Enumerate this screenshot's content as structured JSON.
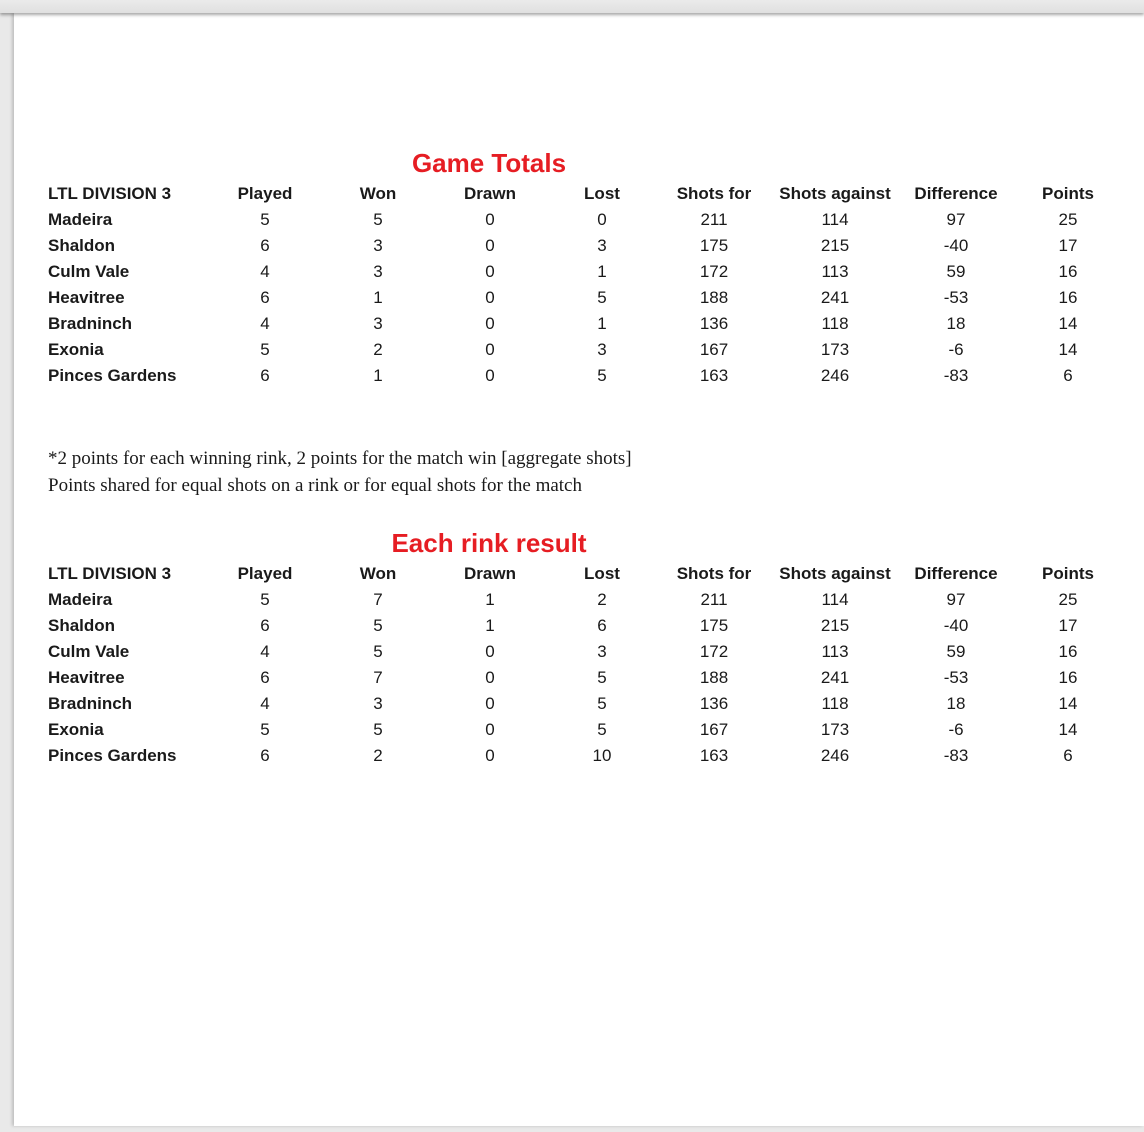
{
  "colors": {
    "accent_red": "#e61d23",
    "text": "#1a1a1a",
    "paper": "#ffffff",
    "chrome_gray": "#e9e9e9"
  },
  "columns": [
    "LTL DIVISION 3",
    "Played",
    "Won",
    "Drawn",
    "Lost",
    "Shots for",
    "Shots against",
    "Difference",
    "Points"
  ],
  "tables": [
    {
      "title": "Game Totals",
      "rows": [
        [
          "Madeira",
          5,
          5,
          0,
          0,
          211,
          114,
          97,
          25
        ],
        [
          "Shaldon",
          6,
          3,
          0,
          3,
          175,
          215,
          -40,
          17
        ],
        [
          "Culm Vale",
          4,
          3,
          0,
          1,
          172,
          113,
          59,
          16
        ],
        [
          "Heavitree",
          6,
          1,
          0,
          5,
          188,
          241,
          -53,
          16
        ],
        [
          "Bradninch",
          4,
          3,
          0,
          1,
          136,
          118,
          18,
          14
        ],
        [
          "Exonia",
          5,
          2,
          0,
          3,
          167,
          173,
          -6,
          14
        ],
        [
          "Pinces Gardens",
          6,
          1,
          0,
          5,
          163,
          246,
          -83,
          6
        ]
      ]
    },
    {
      "title": "Each rink result",
      "rows": [
        [
          "Madeira",
          5,
          7,
          1,
          2,
          211,
          114,
          97,
          25
        ],
        [
          "Shaldon",
          6,
          5,
          1,
          6,
          175,
          215,
          -40,
          17
        ],
        [
          "Culm Vale",
          4,
          5,
          0,
          3,
          172,
          113,
          59,
          16
        ],
        [
          "Heavitree",
          6,
          7,
          0,
          5,
          188,
          241,
          -53,
          16
        ],
        [
          "Bradninch",
          4,
          3,
          0,
          5,
          136,
          118,
          18,
          14
        ],
        [
          "Exonia",
          5,
          5,
          0,
          5,
          167,
          173,
          -6,
          14
        ],
        [
          "Pinces Gardens",
          6,
          2,
          0,
          10,
          163,
          246,
          -83,
          6
        ]
      ]
    }
  ],
  "notes": [
    "*2 points for each winning rink, 2 points for the match win [aggregate shots]",
    "Points shared for equal shots on a rink or for equal shots for the match"
  ]
}
